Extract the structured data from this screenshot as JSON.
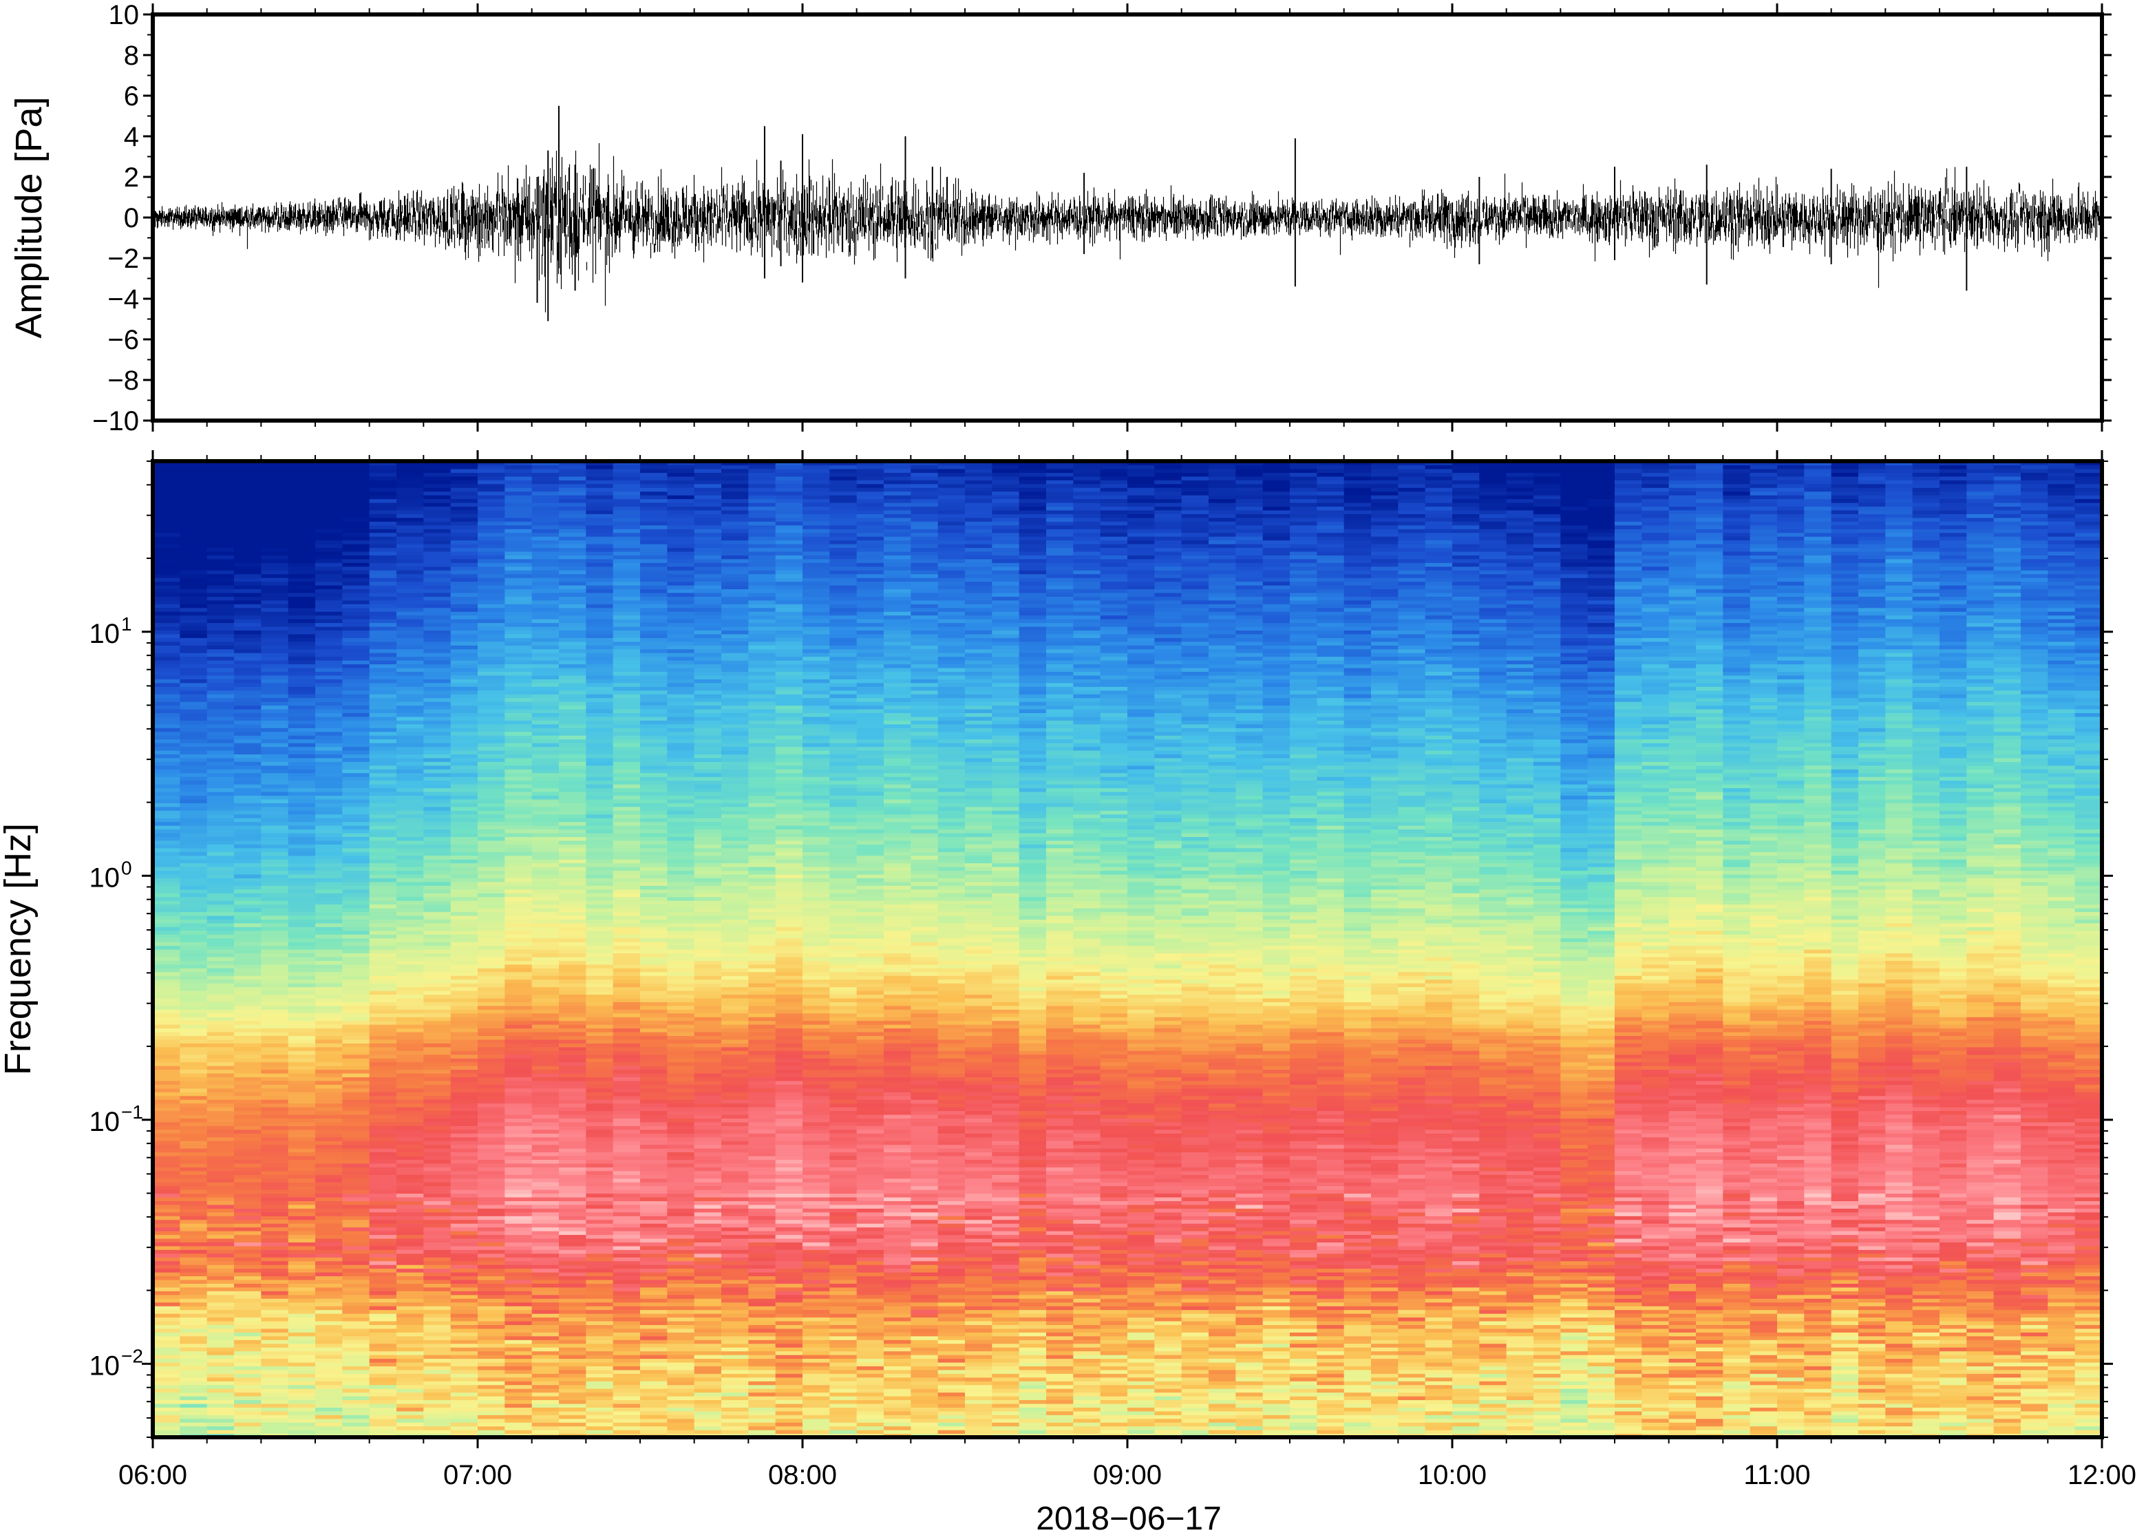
{
  "chart_data": [
    {
      "type": "line",
      "ylabel": "Amplitude [Pa]",
      "ylim": [
        -10,
        10
      ],
      "yticks": [
        10,
        8,
        6,
        4,
        2,
        0,
        -2,
        -4,
        -6,
        -8,
        -10
      ],
      "ytick_labels": [
        "10",
        "8",
        "6",
        "4",
        "2",
        "0",
        "−2",
        "−4",
        "−6",
        "−8",
        "−10"
      ],
      "xlim": [
        "06:00",
        "12:00"
      ],
      "grid": false,
      "color": "#000000",
      "envelope": {
        "time": [
          "06:00",
          "06:30",
          "06:50",
          "07:10",
          "07:15",
          "07:30",
          "07:50",
          "08:00",
          "08:20",
          "08:40",
          "09:00",
          "09:30",
          "09:40",
          "10:00",
          "10:20",
          "10:40",
          "11:00",
          "11:30",
          "12:00"
        ],
        "amplitude": [
          0.4,
          0.7,
          1.3,
          2.2,
          3.5,
          1.6,
          1.9,
          2.1,
          1.9,
          1.1,
          1.0,
          0.9,
          0.8,
          1.3,
          1.0,
          1.6,
          1.5,
          1.7,
          1.4
        ]
      },
      "spikes": [
        {
          "time": "07:11",
          "min": -4.2,
          "max": 2.0
        },
        {
          "time": "07:13",
          "min": -5.1,
          "max": 3.3
        },
        {
          "time": "07:15",
          "min": -2.5,
          "max": 5.5
        },
        {
          "time": "07:18",
          "min": -3.6,
          "max": 2.6
        },
        {
          "time": "07:53",
          "min": -3.0,
          "max": 4.5
        },
        {
          "time": "07:56",
          "min": -2.4,
          "max": 2.8
        },
        {
          "time": "08:00",
          "min": -3.2,
          "max": 4.1
        },
        {
          "time": "08:19",
          "min": -3.0,
          "max": 4.0
        },
        {
          "time": "08:24",
          "min": -2.0,
          "max": 2.5
        },
        {
          "time": "08:52",
          "min": -1.8,
          "max": 2.2
        },
        {
          "time": "09:31",
          "min": -3.4,
          "max": 3.9
        },
        {
          "time": "10:05",
          "min": -2.3,
          "max": 2.0
        },
        {
          "time": "10:30",
          "min": -2.1,
          "max": 2.5
        },
        {
          "time": "10:47",
          "min": -3.3,
          "max": 2.6
        },
        {
          "time": "11:10",
          "min": -2.3,
          "max": 2.4
        },
        {
          "time": "11:35",
          "min": -3.6,
          "max": 2.5
        }
      ]
    },
    {
      "type": "heatmap",
      "ylabel": "Frequency [Hz]",
      "xlabel": "2018−06−17",
      "ylim": [
        0.005,
        50
      ],
      "log_y": true,
      "yticks": [
        {
          "value": 10,
          "base": "10",
          "exp": "1"
        },
        {
          "value": 1,
          "base": "10",
          "exp": "0"
        },
        {
          "value": 0.1,
          "base": "10",
          "exp": "−1"
        },
        {
          "value": 0.01,
          "base": "10",
          "exp": "−2"
        }
      ],
      "xticks": [
        "06:00",
        "07:00",
        "08:00",
        "09:00",
        "10:00",
        "11:00",
        "12:00"
      ],
      "colormap": "spectral",
      "columns_per_hour": 12,
      "relative_power_by_frequency": {
        "frequency_hz": [
          50,
          20,
          10,
          5,
          2,
          1,
          0.5,
          0.3,
          0.2,
          0.1,
          0.05,
          0.03,
          0.015,
          0.005
        ],
        "level": [
          0.03,
          0.12,
          0.18,
          0.26,
          0.34,
          0.42,
          0.52,
          0.62,
          0.74,
          0.85,
          0.9,
          0.86,
          0.66,
          0.55
        ]
      },
      "relative_power_by_time": {
        "time": [
          "06:00",
          "06:30",
          "06:45",
          "07:00",
          "07:10",
          "07:30",
          "08:00",
          "08:30",
          "09:00",
          "09:30",
          "09:40",
          "10:00",
          "10:20",
          "10:25",
          "10:35",
          "11:00",
          "11:30",
          "12:00"
        ],
        "offset": [
          -0.14,
          -0.12,
          -0.05,
          0.0,
          0.04,
          0.01,
          0.03,
          0.0,
          -0.02,
          -0.01,
          -0.05,
          0.0,
          -0.06,
          -0.1,
          0.01,
          0.02,
          0.02,
          0.0
        ]
      },
      "colors": [
        "#001a96",
        "#1b4fd0",
        "#2c8ae8",
        "#47c1e8",
        "#74e3c2",
        "#c6f29e",
        "#f8f38d",
        "#fbbf52",
        "#f77f45",
        "#f25254",
        "#fd8088",
        "#ffc4c4"
      ]
    }
  ]
}
